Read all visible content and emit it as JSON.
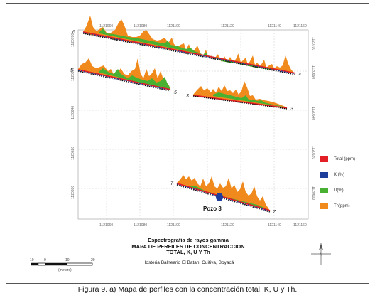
{
  "map": {
    "x_ticks": [
      "1121080",
      "1121060",
      "1121080",
      "1121100",
      "1121120",
      "1121140",
      "1121160"
    ],
    "y_ticks_left": [
      "1120700",
      "1120660",
      "1120640",
      "1120620",
      "1120600"
    ],
    "y_ticks_right": [
      "1120700",
      "1120660",
      "1120640",
      "1120620",
      "1120600"
    ],
    "x_ticks_bottom": [
      "1121080",
      "1121060",
      "1121080",
      "1121100",
      "1121120",
      "1121140",
      "1121160"
    ]
  },
  "profiles": [
    {
      "id": "6",
      "start_label": "6",
      "end_label": "4"
    },
    {
      "id": "5",
      "start_label": "5",
      "end_label": "5"
    },
    {
      "id": "3",
      "start_label": "3",
      "end_label": "3"
    },
    {
      "id": "7",
      "start_label": "7",
      "end_label": "7"
    }
  ],
  "well_label": "Pozo 3",
  "legend": [
    {
      "label": "Total (ppm)",
      "color": "#e31e24"
    },
    {
      "label": "K (%)",
      "color": "#1f3e9c"
    },
    {
      "label": "U(%)",
      "color": "#49b132"
    },
    {
      "label": "Th(ppm)",
      "color": "#f08a1c"
    }
  ],
  "title": {
    "line1": "Espectrografia de rayos gamma",
    "line2": "MAPA DE PERFILES DE CONCENTRACCION",
    "line3": "TOTAL, K, U Y Th",
    "subtitle": "Hosteria Balneario El Batan, Cuitiva, Boyacá"
  },
  "scalebar": {
    "ticks": [
      "10",
      "0",
      "10",
      "20"
    ],
    "unit": "(meters)"
  },
  "north_label": "N",
  "caption": "Figura 9. a) Mapa de perfiles con la concentración total, K, U y Th."
}
